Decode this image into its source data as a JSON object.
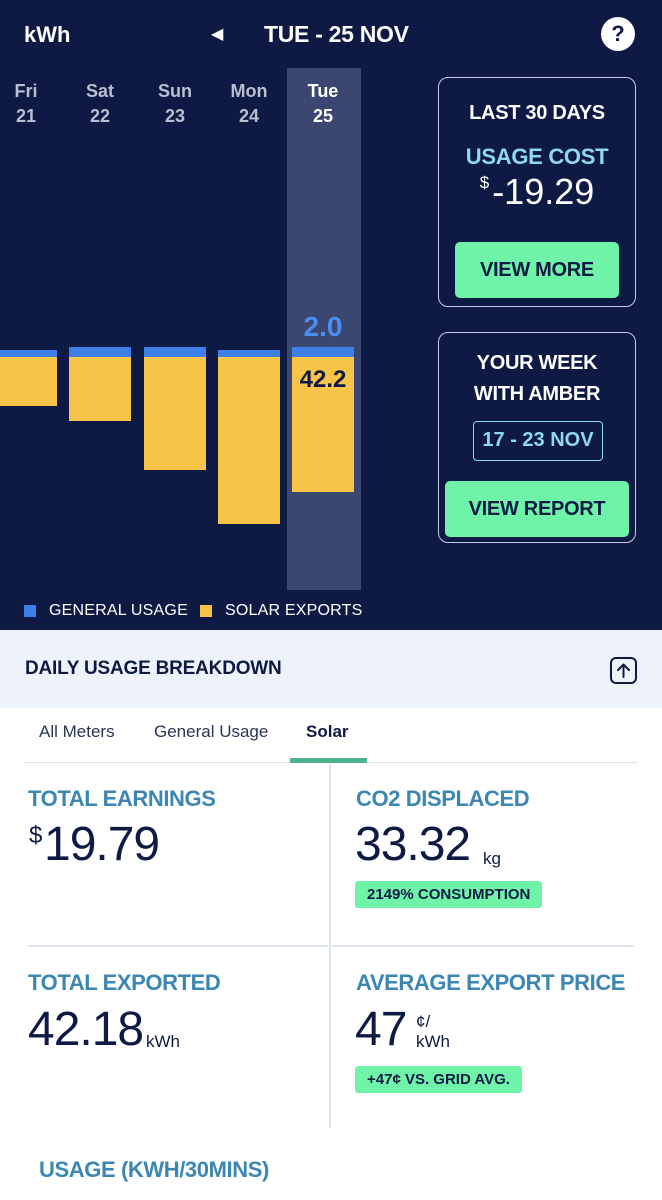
{
  "header": {
    "unit_label": "kWh",
    "prev_icon": "◀",
    "date_title": "TUE - 25 NOV",
    "help_icon": "?"
  },
  "chart_data": {
    "type": "bar",
    "categories": [
      "Fri 21",
      "Sat 22",
      "Sun 23",
      "Mon 24",
      "Tue 25"
    ],
    "days": [
      {
        "name": "Fri",
        "num": "21"
      },
      {
        "name": "Sat",
        "num": "22"
      },
      {
        "name": "Sun",
        "num": "23"
      },
      {
        "name": "Mon",
        "num": "24"
      },
      {
        "name": "Tue",
        "num": "25"
      }
    ],
    "selected_index": 4,
    "series": [
      {
        "name": "GENERAL USAGE",
        "color": "#3d7fe6",
        "values": [
          1.4,
          2.0,
          2.0,
          1.5,
          2.0
        ]
      },
      {
        "name": "SOLAR EXPORTS",
        "color": "#f7c448",
        "values": [
          15.3,
          20.0,
          35.4,
          52.2,
          42.2
        ]
      }
    ],
    "selected_labels": {
      "usage": "2.0",
      "solar": "42.2"
    }
  },
  "legend": [
    {
      "label": "GENERAL USAGE",
      "color": "#3d7fe6"
    },
    {
      "label": "SOLAR EXPORTS",
      "color": "#f7c448"
    }
  ],
  "cost_card": {
    "title": "LAST 30 DAYS",
    "label": "USAGE COST",
    "currency": "$",
    "value": "-19.29",
    "button": "VIEW MORE"
  },
  "week_card": {
    "title_line1": "YOUR WEEK",
    "title_line2": "WITH AMBER",
    "range": "17 - 23 NOV",
    "button": "VIEW REPORT"
  },
  "breakdown": {
    "title": "DAILY USAGE BREAKDOWN",
    "collapse_icon": "arrow-up-icon"
  },
  "tabs": [
    {
      "label": "All Meters"
    },
    {
      "label": "General Usage"
    },
    {
      "label": "Solar"
    }
  ],
  "stats": {
    "earnings": {
      "label": "TOTAL EARNINGS",
      "currency": "$",
      "value": "19.79"
    },
    "co2": {
      "label": "CO2 DISPLACED",
      "value": "33.32",
      "unit": "kg",
      "badge": "2149% CONSUMPTION"
    },
    "exported": {
      "label": "TOTAL EXPORTED",
      "value": "42.18",
      "unit": "kWh"
    },
    "price": {
      "label": "AVERAGE EXPORT PRICE",
      "value": "47",
      "unit_top": "¢/",
      "unit_bottom": "kWh",
      "badge": "+47¢ VS. GRID AVG."
    }
  },
  "usage_section": {
    "title": "USAGE (KWH/30MINS)"
  },
  "colors": {
    "navy": "#0f1a44",
    "accent_green": "#6ef3a8",
    "stat_blue": "#3c86b4",
    "tab_underline": "#4db38a"
  }
}
